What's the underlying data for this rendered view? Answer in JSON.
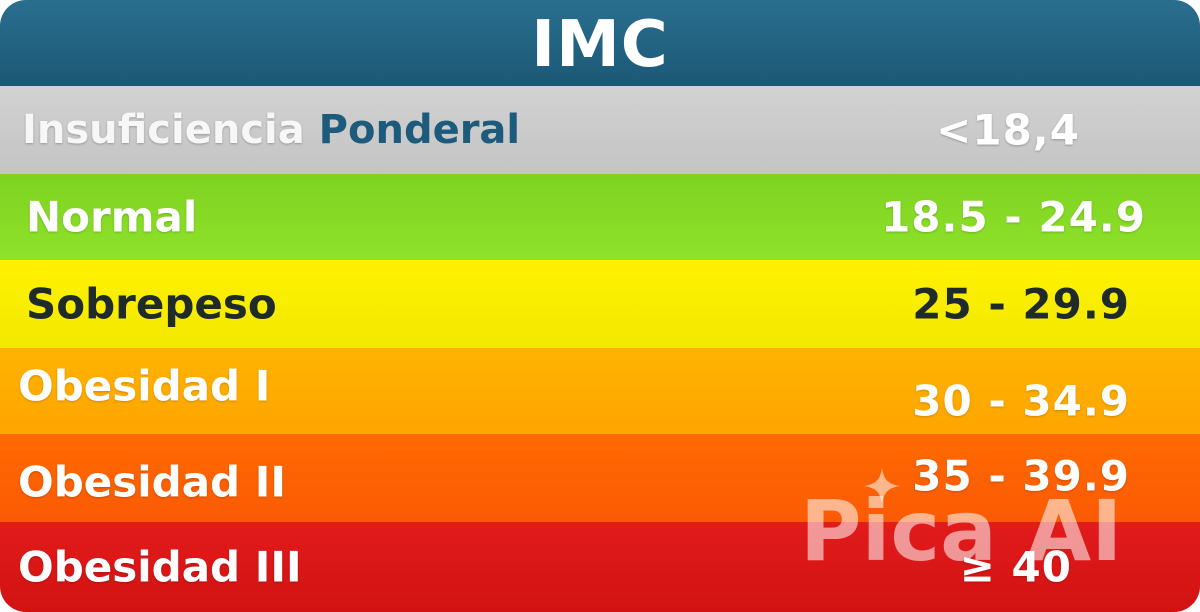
{
  "header": {
    "title": "IMC"
  },
  "rows": [
    {
      "label_a": "Insuficiencia ",
      "label_b": "Ponderal",
      "value": "<18,4",
      "color": "#c8c8c8"
    },
    {
      "label": "Normal",
      "value": "18.5 - 24.9",
      "color": "#86d925"
    },
    {
      "label": "Sobrepeso",
      "value": "25 - 29.9",
      "color": "#f7ec00"
    },
    {
      "label": "Obesidad I",
      "value": "30 - 34.9",
      "color": "#ffab00"
    },
    {
      "label": "Obesidad II",
      "value": "35 - 39.9",
      "color": "#fd6202"
    },
    {
      "label": "Obesidad III",
      "value": "≥ 40",
      "color": "#d91616"
    }
  ],
  "watermark": {
    "text": "Pica AI",
    "icon": "sparkle-icon"
  }
}
